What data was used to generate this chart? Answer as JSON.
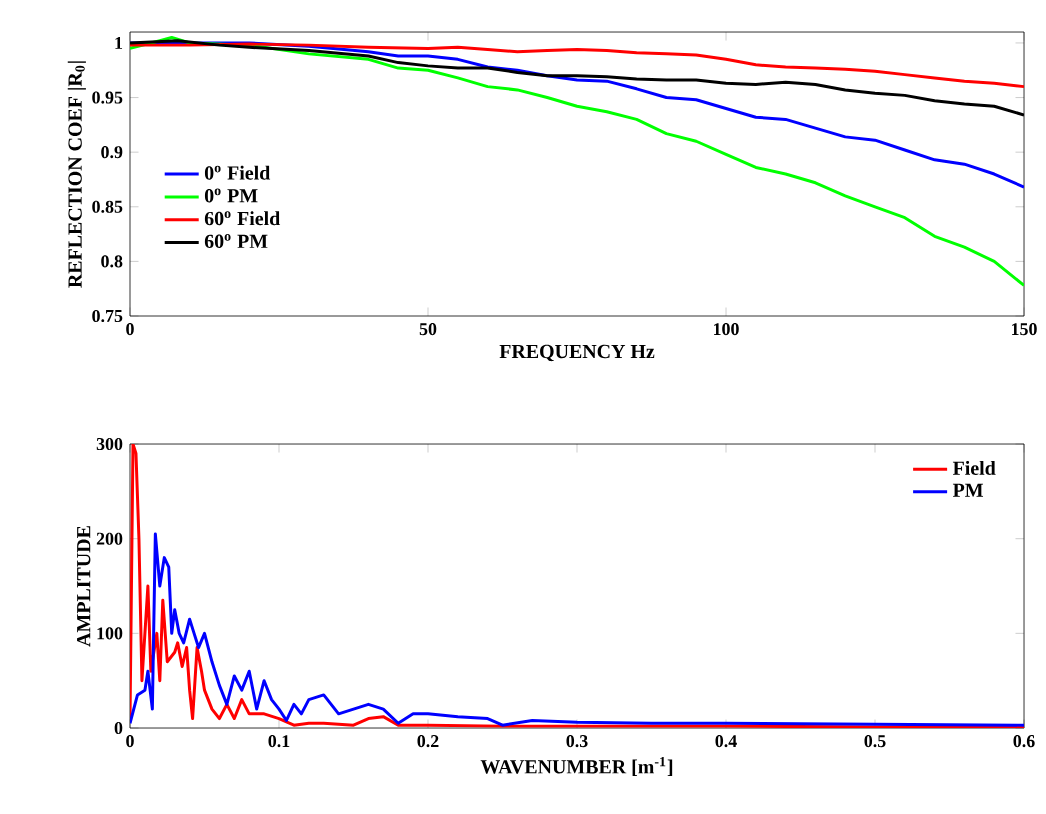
{
  "chart_data": [
    {
      "type": "line",
      "xlabel": "FREQUENCY Hz",
      "ylabel": "REFLECTION COEF |R$_{0}$|",
      "xlim": [
        0,
        150
      ],
      "ylim": [
        0.75,
        1.01
      ],
      "xticks": [
        0,
        50,
        100,
        150
      ],
      "yticks": [
        0.75,
        0.8,
        0.85,
        0.9,
        0.95,
        1
      ],
      "legend": "bottom left",
      "series": [
        {
          "name": "0$^{o}$ Field",
          "color": "#0000ff",
          "x": [
            0,
            5,
            10,
            20,
            30,
            40,
            45,
            50,
            55,
            60,
            65,
            70,
            75,
            80,
            85,
            90,
            95,
            100,
            105,
            110,
            115,
            120,
            125,
            130,
            135,
            140,
            145,
            150
          ],
          "values": [
            1.0,
            1.0,
            1.0,
            1.0,
            0.997,
            0.992,
            0.988,
            0.988,
            0.985,
            0.978,
            0.975,
            0.97,
            0.966,
            0.965,
            0.958,
            0.95,
            0.948,
            0.94,
            0.932,
            0.93,
            0.922,
            0.914,
            0.911,
            0.902,
            0.893,
            0.889,
            0.88,
            0.868
          ]
        },
        {
          "name": "0$^{o}$ PM",
          "color": "#00ff00",
          "x": [
            0,
            5,
            7,
            10,
            20,
            30,
            40,
            45,
            50,
            55,
            60,
            65,
            70,
            75,
            80,
            85,
            90,
            95,
            100,
            105,
            110,
            115,
            120,
            125,
            130,
            135,
            140,
            145,
            150
          ],
          "values": [
            0.995,
            1.002,
            1.005,
            1.0,
            0.998,
            0.99,
            0.985,
            0.977,
            0.975,
            0.968,
            0.96,
            0.957,
            0.95,
            0.942,
            0.937,
            0.93,
            0.917,
            0.91,
            0.898,
            0.886,
            0.88,
            0.872,
            0.86,
            0.85,
            0.84,
            0.823,
            0.813,
            0.8,
            0.778
          ]
        },
        {
          "name": "60$^{o}$ Field",
          "color": "#ff0000",
          "x": [
            0,
            10,
            20,
            30,
            40,
            50,
            55,
            60,
            65,
            70,
            75,
            80,
            85,
            90,
            95,
            100,
            105,
            110,
            115,
            120,
            125,
            130,
            135,
            140,
            145,
            150
          ],
          "values": [
            0.998,
            0.998,
            0.999,
            0.998,
            0.996,
            0.995,
            0.996,
            0.994,
            0.992,
            0.993,
            0.994,
            0.993,
            0.991,
            0.99,
            0.989,
            0.985,
            0.98,
            0.978,
            0.977,
            0.976,
            0.974,
            0.971,
            0.968,
            0.965,
            0.963,
            0.96
          ]
        },
        {
          "name": "60$^{o}$ PM",
          "color": "#000000",
          "x": [
            0,
            8,
            15,
            20,
            30,
            40,
            45,
            50,
            55,
            60,
            65,
            70,
            75,
            80,
            85,
            90,
            95,
            100,
            105,
            110,
            115,
            120,
            125,
            130,
            135,
            140,
            145,
            150
          ],
          "values": [
            1.0,
            1.002,
            0.998,
            0.996,
            0.993,
            0.988,
            0.982,
            0.979,
            0.977,
            0.977,
            0.973,
            0.97,
            0.97,
            0.969,
            0.967,
            0.966,
            0.966,
            0.963,
            0.962,
            0.964,
            0.962,
            0.957,
            0.954,
            0.952,
            0.947,
            0.944,
            0.942,
            0.934
          ]
        }
      ]
    },
    {
      "type": "line",
      "xlabel": "WAVENUMBER [m$^{-1}$]",
      "ylabel": "AMPLITUDE",
      "xlim": [
        0,
        0.6
      ],
      "ylim": [
        0,
        300
      ],
      "xticks": [
        0,
        0.1,
        0.2,
        0.3,
        0.4,
        0.5,
        0.6
      ],
      "yticks": [
        0,
        100,
        200,
        300
      ],
      "legend": "top right",
      "series": [
        {
          "name": "Field",
          "color": "#ff0000",
          "x": [
            0,
            0.002,
            0.004,
            0.006,
            0.008,
            0.01,
            0.012,
            0.014,
            0.018,
            0.02,
            0.022,
            0.025,
            0.03,
            0.032,
            0.035,
            0.038,
            0.04,
            0.042,
            0.045,
            0.048,
            0.05,
            0.055,
            0.06,
            0.065,
            0.07,
            0.075,
            0.08,
            0.09,
            0.1,
            0.11,
            0.12,
            0.13,
            0.15,
            0.16,
            0.17,
            0.18,
            0.2,
            0.25,
            0.3,
            0.4,
            0.5,
            0.6
          ],
          "values": [
            10,
            300,
            290,
            200,
            50,
            100,
            150,
            60,
            100,
            50,
            135,
            70,
            80,
            90,
            65,
            85,
            40,
            10,
            85,
            60,
            40,
            20,
            10,
            25,
            10,
            30,
            15,
            15,
            10,
            3,
            5,
            5,
            3,
            10,
            12,
            3,
            3,
            2,
            2,
            2,
            1,
            1
          ]
        },
        {
          "name": "PM",
          "color": "#0000ff",
          "x": [
            0,
            0.005,
            0.01,
            0.012,
            0.015,
            0.017,
            0.02,
            0.023,
            0.026,
            0.028,
            0.03,
            0.033,
            0.036,
            0.04,
            0.043,
            0.046,
            0.05,
            0.055,
            0.06,
            0.065,
            0.07,
            0.075,
            0.08,
            0.085,
            0.09,
            0.095,
            0.1,
            0.105,
            0.11,
            0.115,
            0.12,
            0.13,
            0.14,
            0.15,
            0.16,
            0.17,
            0.18,
            0.19,
            0.2,
            0.22,
            0.24,
            0.25,
            0.27,
            0.3,
            0.35,
            0.4,
            0.5,
            0.6
          ],
          "values": [
            5,
            35,
            40,
            60,
            20,
            205,
            150,
            180,
            170,
            100,
            125,
            100,
            90,
            115,
            100,
            85,
            100,
            70,
            45,
            25,
            55,
            40,
            60,
            20,
            50,
            30,
            20,
            8,
            25,
            15,
            30,
            35,
            15,
            20,
            25,
            20,
            5,
            15,
            15,
            12,
            10,
            3,
            8,
            6,
            5,
            5,
            4,
            3
          ]
        }
      ]
    }
  ]
}
